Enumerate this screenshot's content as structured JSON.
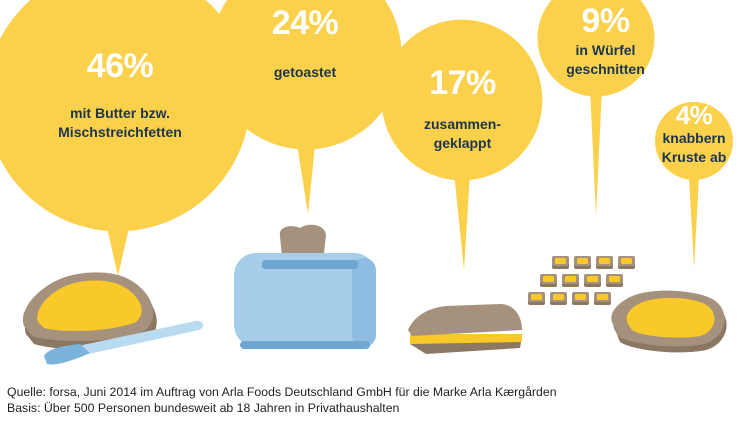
{
  "colors": {
    "bubble": "#fbd04a",
    "label_text": "#1a3550",
    "percent_text": "#ffffff",
    "bread_crust": "#a6927c",
    "bread_dark": "#8c7862",
    "butter": "#f9c92a",
    "toaster": "#a6cdea",
    "toaster_dark": "#6fa6d2",
    "knife": "#8fc3e8"
  },
  "chart_data": {
    "type": "bubble",
    "categories": [
      "mit Butter bzw. Mischstreichfetten",
      "getoastet",
      "zusammen-geklappt",
      "in Würfel geschnitten",
      "knabbern Kruste ab"
    ],
    "values": [
      46,
      24,
      17,
      9,
      4
    ],
    "unit": "%",
    "labels": [
      {
        "percent": "46%",
        "text": "mit Butter bzw.\nMischstreichfetten"
      },
      {
        "percent": "24%",
        "text": "getoastet"
      },
      {
        "percent": "17%",
        "text": "zusammen-\ngeklappt"
      },
      {
        "percent": "9%",
        "text": "in Würfel\ngeschnitten"
      },
      {
        "percent": "4%",
        "text": "knabbern\nKruste ab"
      }
    ]
  },
  "footer": {
    "source": "Quelle: forsa, Juni 2014 im Auftrag von Arla Foods Deutschland GmbH für die Marke Arla Kærgården",
    "basis": "Basis: Über 500 Personen bundesweit ab 18 Jahren in Privathaushalten"
  }
}
